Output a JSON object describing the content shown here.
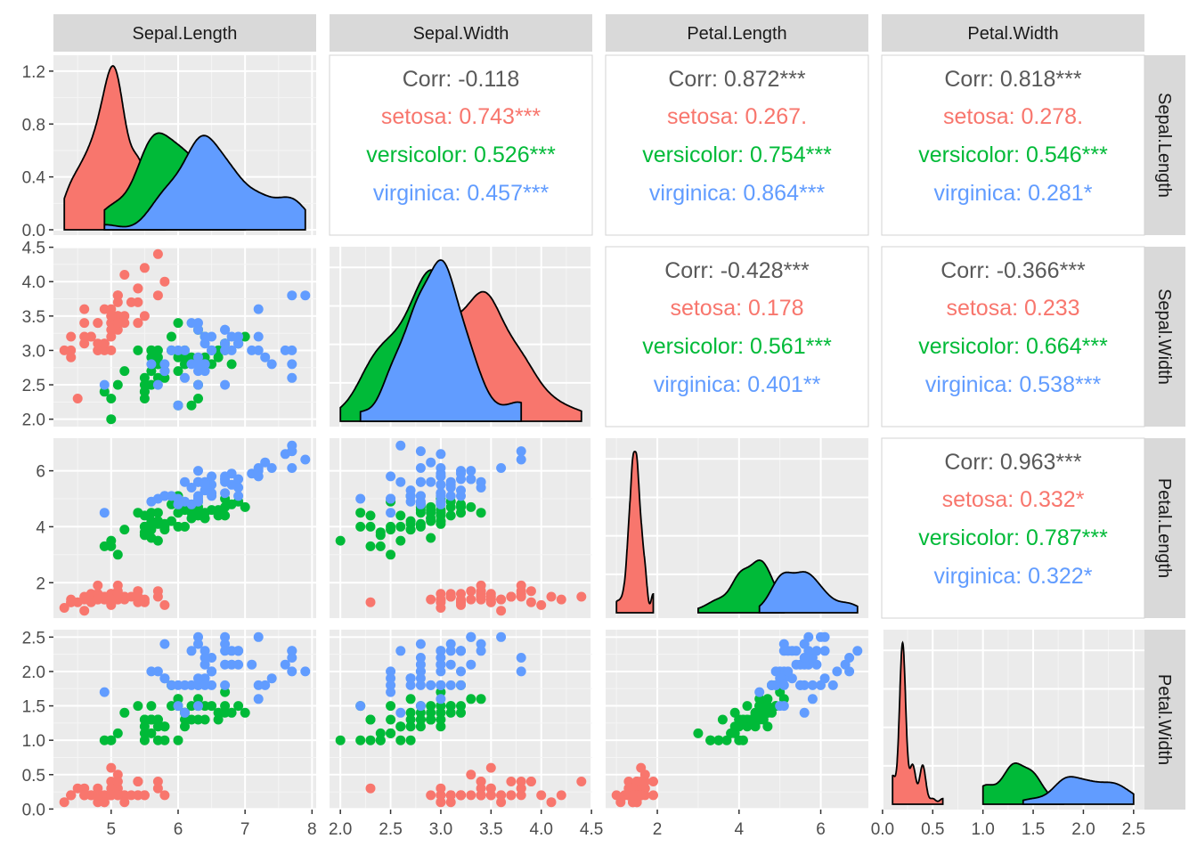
{
  "chart_data": {
    "type": "scatter",
    "variables": [
      "Sepal.Length",
      "Sepal.Width",
      "Petal.Length",
      "Petal.Width"
    ],
    "species": [
      {
        "name": "setosa",
        "color": "#F8766D"
      },
      {
        "name": "versicolor",
        "color": "#00BA38"
      },
      {
        "name": "virginica",
        "color": "#619CFF"
      }
    ],
    "axes": {
      "Sepal.Length": {
        "range": [
          4.3,
          7.9
        ],
        "ticks": [
          5,
          6,
          7,
          8
        ],
        "tick_labels": [
          "5",
          "6",
          "7",
          "8"
        ]
      },
      "Sepal.Width": {
        "range": [
          2.0,
          4.4
        ],
        "ticks": [
          2.0,
          2.5,
          3.0,
          3.5,
          4.0,
          4.5
        ],
        "tick_labels": [
          "2.0",
          "2.5",
          "3.0",
          "3.5",
          "4.0",
          "4.5"
        ]
      },
      "Petal.Length": {
        "range": [
          1.0,
          6.9
        ],
        "ticks": [
          2,
          4,
          6
        ],
        "tick_labels": [
          "2",
          "4",
          "6"
        ]
      },
      "Petal.Width": {
        "range": [
          0.1,
          2.5
        ],
        "ticks": [
          0.0,
          0.5,
          1.0,
          1.5,
          2.0,
          2.5
        ],
        "tick_labels": [
          "0.0",
          "0.5",
          "1.0",
          "1.5",
          "2.0",
          "2.5"
        ]
      }
    },
    "density_axis": {
      "range": [
        0,
        1.28
      ],
      "ticks": [
        0.0,
        0.4,
        0.8,
        1.2
      ],
      "tick_labels": [
        "0.0",
        "0.4",
        "0.8",
        "1.2"
      ]
    },
    "correlations": [
      {
        "row": 0,
        "col": 1,
        "overall": "Corr: -0.118",
        "by_species": [
          "setosa: 0.743***",
          "versicolor: 0.526***",
          "virginica: 0.457***"
        ]
      },
      {
        "row": 0,
        "col": 2,
        "overall": "Corr: 0.872***",
        "by_species": [
          "setosa: 0.267.",
          "versicolor: 0.754***",
          "virginica: 0.864***"
        ]
      },
      {
        "row": 0,
        "col": 3,
        "overall": "Corr: 0.818***",
        "by_species": [
          "setosa: 0.278.",
          "versicolor: 0.546***",
          "virginica: 0.281*"
        ]
      },
      {
        "row": 1,
        "col": 2,
        "overall": "Corr: -0.428***",
        "by_species": [
          "setosa: 0.178",
          "versicolor: 0.561***",
          "virginica: 0.401**"
        ]
      },
      {
        "row": 1,
        "col": 3,
        "overall": "Corr: -0.366***",
        "by_species": [
          "setosa: 0.233",
          "versicolor: 0.664***",
          "virginica: 0.538***"
        ]
      },
      {
        "row": 2,
        "col": 3,
        "overall": "Corr: 0.963***",
        "by_species": [
          "setosa: 0.332*",
          "versicolor: 0.787***",
          "virginica: 0.322*"
        ]
      }
    ],
    "points": {
      "setosa": [
        [
          5.1,
          3.5,
          1.4,
          0.2
        ],
        [
          4.9,
          3.0,
          1.4,
          0.2
        ],
        [
          4.7,
          3.2,
          1.3,
          0.2
        ],
        [
          4.6,
          3.1,
          1.5,
          0.2
        ],
        [
          5.0,
          3.6,
          1.4,
          0.2
        ],
        [
          5.4,
          3.9,
          1.7,
          0.4
        ],
        [
          4.6,
          3.4,
          1.4,
          0.3
        ],
        [
          5.0,
          3.4,
          1.5,
          0.2
        ],
        [
          4.4,
          2.9,
          1.4,
          0.2
        ],
        [
          4.9,
          3.1,
          1.5,
          0.1
        ],
        [
          5.4,
          3.7,
          1.5,
          0.2
        ],
        [
          4.8,
          3.4,
          1.6,
          0.2
        ],
        [
          4.8,
          3.0,
          1.4,
          0.1
        ],
        [
          4.3,
          3.0,
          1.1,
          0.1
        ],
        [
          5.8,
          4.0,
          1.2,
          0.2
        ],
        [
          5.7,
          4.4,
          1.5,
          0.4
        ],
        [
          5.4,
          3.9,
          1.3,
          0.4
        ],
        [
          5.1,
          3.5,
          1.4,
          0.3
        ],
        [
          5.7,
          3.8,
          1.7,
          0.3
        ],
        [
          5.1,
          3.8,
          1.5,
          0.3
        ],
        [
          5.4,
          3.4,
          1.7,
          0.2
        ],
        [
          5.1,
          3.7,
          1.5,
          0.4
        ],
        [
          4.6,
          3.6,
          1.0,
          0.2
        ],
        [
          5.1,
          3.3,
          1.7,
          0.5
        ],
        [
          4.8,
          3.4,
          1.9,
          0.2
        ],
        [
          5.0,
          3.0,
          1.6,
          0.2
        ],
        [
          5.0,
          3.4,
          1.6,
          0.4
        ],
        [
          5.2,
          3.5,
          1.5,
          0.2
        ],
        [
          5.2,
          3.4,
          1.4,
          0.2
        ],
        [
          4.7,
          3.2,
          1.6,
          0.2
        ],
        [
          4.8,
          3.1,
          1.6,
          0.2
        ],
        [
          5.4,
          3.4,
          1.5,
          0.4
        ],
        [
          5.2,
          4.1,
          1.5,
          0.1
        ],
        [
          5.5,
          4.2,
          1.4,
          0.2
        ],
        [
          4.9,
          3.1,
          1.5,
          0.2
        ],
        [
          5.0,
          3.2,
          1.2,
          0.2
        ],
        [
          5.5,
          3.5,
          1.3,
          0.2
        ],
        [
          4.9,
          3.6,
          1.4,
          0.1
        ],
        [
          4.4,
          3.0,
          1.3,
          0.2
        ],
        [
          5.1,
          3.4,
          1.5,
          0.2
        ],
        [
          5.0,
          3.5,
          1.3,
          0.3
        ],
        [
          4.5,
          2.3,
          1.3,
          0.3
        ],
        [
          4.4,
          3.2,
          1.3,
          0.2
        ],
        [
          5.0,
          3.5,
          1.6,
          0.6
        ],
        [
          5.1,
          3.8,
          1.9,
          0.4
        ],
        [
          4.8,
          3.0,
          1.4,
          0.3
        ],
        [
          5.1,
          3.8,
          1.6,
          0.2
        ],
        [
          4.6,
          3.2,
          1.4,
          0.2
        ],
        [
          5.3,
          3.7,
          1.5,
          0.2
        ],
        [
          5.0,
          3.3,
          1.4,
          0.2
        ]
      ],
      "versicolor": [
        [
          7.0,
          3.2,
          4.7,
          1.4
        ],
        [
          6.4,
          3.2,
          4.5,
          1.5
        ],
        [
          6.9,
          3.1,
          4.9,
          1.5
        ],
        [
          5.5,
          2.3,
          4.0,
          1.3
        ],
        [
          6.5,
          2.8,
          4.6,
          1.5
        ],
        [
          5.7,
          2.8,
          4.5,
          1.3
        ],
        [
          6.3,
          3.3,
          4.7,
          1.6
        ],
        [
          4.9,
          2.4,
          3.3,
          1.0
        ],
        [
          6.6,
          2.9,
          4.6,
          1.3
        ],
        [
          5.2,
          2.7,
          3.9,
          1.4
        ],
        [
          5.0,
          2.0,
          3.5,
          1.0
        ],
        [
          5.9,
          3.0,
          4.2,
          1.5
        ],
        [
          6.0,
          2.2,
          4.0,
          1.0
        ],
        [
          6.1,
          2.9,
          4.7,
          1.4
        ],
        [
          5.6,
          2.9,
          3.6,
          1.3
        ],
        [
          6.7,
          3.1,
          4.4,
          1.4
        ],
        [
          5.6,
          3.0,
          4.5,
          1.5
        ],
        [
          5.8,
          2.7,
          4.1,
          1.0
        ],
        [
          6.2,
          2.2,
          4.5,
          1.5
        ],
        [
          5.6,
          2.5,
          3.9,
          1.1
        ],
        [
          5.9,
          3.2,
          4.8,
          1.8
        ],
        [
          6.1,
          2.8,
          4.0,
          1.3
        ],
        [
          6.3,
          2.5,
          4.9,
          1.5
        ],
        [
          6.1,
          2.8,
          4.7,
          1.2
        ],
        [
          6.4,
          2.9,
          4.3,
          1.3
        ],
        [
          6.6,
          3.0,
          4.4,
          1.4
        ],
        [
          6.8,
          2.8,
          4.8,
          1.4
        ],
        [
          6.7,
          3.0,
          5.0,
          1.7
        ],
        [
          6.0,
          2.9,
          4.5,
          1.5
        ],
        [
          5.7,
          2.6,
          3.5,
          1.0
        ],
        [
          5.5,
          2.4,
          3.8,
          1.1
        ],
        [
          5.5,
          2.4,
          3.7,
          1.0
        ],
        [
          5.8,
          2.7,
          3.9,
          1.2
        ],
        [
          6.0,
          2.7,
          5.1,
          1.6
        ],
        [
          5.4,
          3.0,
          4.5,
          1.5
        ],
        [
          6.0,
          3.4,
          4.5,
          1.6
        ],
        [
          6.7,
          3.1,
          4.7,
          1.5
        ],
        [
          6.3,
          2.3,
          4.4,
          1.3
        ],
        [
          5.6,
          3.0,
          4.1,
          1.3
        ],
        [
          5.5,
          2.5,
          4.0,
          1.3
        ],
        [
          5.5,
          2.6,
          4.4,
          1.2
        ],
        [
          6.1,
          3.0,
          4.6,
          1.4
        ],
        [
          5.8,
          2.6,
          4.0,
          1.2
        ],
        [
          5.0,
          2.3,
          3.3,
          1.0
        ],
        [
          5.6,
          2.7,
          4.2,
          1.3
        ],
        [
          5.7,
          3.0,
          4.2,
          1.2
        ],
        [
          5.7,
          2.9,
          4.2,
          1.3
        ],
        [
          6.2,
          2.9,
          4.3,
          1.3
        ],
        [
          5.1,
          2.5,
          3.0,
          1.1
        ],
        [
          5.7,
          2.8,
          4.1,
          1.3
        ]
      ],
      "virginica": [
        [
          6.3,
          3.3,
          6.0,
          2.5
        ],
        [
          5.8,
          2.7,
          5.1,
          1.9
        ],
        [
          7.1,
          3.0,
          5.9,
          2.1
        ],
        [
          6.3,
          2.9,
          5.6,
          1.8
        ],
        [
          6.5,
          3.0,
          5.8,
          2.2
        ],
        [
          7.6,
          3.0,
          6.6,
          2.1
        ],
        [
          4.9,
          2.5,
          4.5,
          1.7
        ],
        [
          7.3,
          2.9,
          6.3,
          1.8
        ],
        [
          6.7,
          2.5,
          5.8,
          1.8
        ],
        [
          7.2,
          3.6,
          6.1,
          2.5
        ],
        [
          6.5,
          3.2,
          5.1,
          2.0
        ],
        [
          6.4,
          2.7,
          5.3,
          1.9
        ],
        [
          6.8,
          3.0,
          5.5,
          2.1
        ],
        [
          5.7,
          2.5,
          5.0,
          2.0
        ],
        [
          5.8,
          2.8,
          5.1,
          2.4
        ],
        [
          6.4,
          3.2,
          5.3,
          2.3
        ],
        [
          6.5,
          3.0,
          5.5,
          1.8
        ],
        [
          7.7,
          3.8,
          6.7,
          2.2
        ],
        [
          7.7,
          2.6,
          6.9,
          2.3
        ],
        [
          6.0,
          2.2,
          5.0,
          1.5
        ],
        [
          6.9,
          3.2,
          5.7,
          2.3
        ],
        [
          5.6,
          2.8,
          4.9,
          2.0
        ],
        [
          7.7,
          2.8,
          6.7,
          2.0
        ],
        [
          6.3,
          2.7,
          4.9,
          1.8
        ],
        [
          6.7,
          3.3,
          5.7,
          2.1
        ],
        [
          7.2,
          3.2,
          6.0,
          1.8
        ],
        [
          6.2,
          2.8,
          4.8,
          1.8
        ],
        [
          6.1,
          3.0,
          4.9,
          1.8
        ],
        [
          6.4,
          2.8,
          5.6,
          2.1
        ],
        [
          7.2,
          3.0,
          5.8,
          1.6
        ],
        [
          7.4,
          2.8,
          6.1,
          1.9
        ],
        [
          7.9,
          3.8,
          6.4,
          2.0
        ],
        [
          6.4,
          2.8,
          5.6,
          2.2
        ],
        [
          6.3,
          2.8,
          5.1,
          1.5
        ],
        [
          6.1,
          2.6,
          5.6,
          1.4
        ],
        [
          7.7,
          3.0,
          6.1,
          2.3
        ],
        [
          6.3,
          3.4,
          5.6,
          2.4
        ],
        [
          6.4,
          3.1,
          5.5,
          1.8
        ],
        [
          6.0,
          3.0,
          4.8,
          1.8
        ],
        [
          6.9,
          3.1,
          5.4,
          2.1
        ],
        [
          6.7,
          3.1,
          5.6,
          2.4
        ],
        [
          6.9,
          3.1,
          5.1,
          2.3
        ],
        [
          5.8,
          2.7,
          5.1,
          1.9
        ],
        [
          6.8,
          3.2,
          5.9,
          2.3
        ],
        [
          6.7,
          3.3,
          5.7,
          2.5
        ],
        [
          6.7,
          3.0,
          5.2,
          2.3
        ],
        [
          6.3,
          2.5,
          5.0,
          1.9
        ],
        [
          6.5,
          3.0,
          5.2,
          2.0
        ],
        [
          6.2,
          3.4,
          5.4,
          2.3
        ],
        [
          5.9,
          3.0,
          5.1,
          1.8
        ]
      ]
    },
    "grid": true,
    "legend": "none"
  }
}
